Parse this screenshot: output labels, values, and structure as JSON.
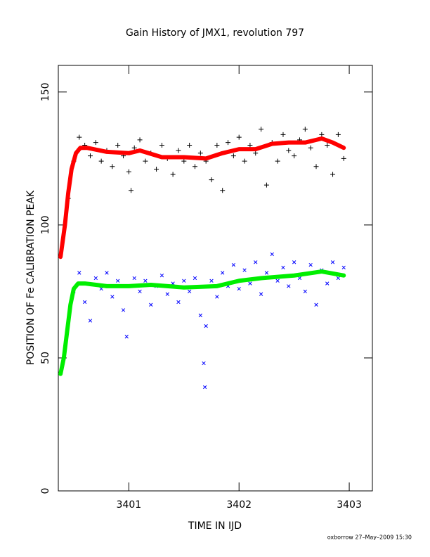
{
  "chart_data": {
    "type": "scatter",
    "title": "Gain History of JMX1, revolution 797",
    "xlabel": "TIME IN IJD",
    "ylabel": "POSITION OF Fe CALIBRATION PEAK",
    "footer": "oxborrow 27–May–2009 15:30",
    "xlim": [
      3400.36,
      3403.21
    ],
    "ylim": [
      0,
      160
    ],
    "xticks": [
      3401,
      3402,
      3403
    ],
    "yticks": [
      0,
      50,
      100,
      150
    ],
    "series": [
      {
        "color": "#000000",
        "marker": "plus",
        "x": [
          3400.45,
          3400.5,
          3400.55,
          3400.6,
          3400.65,
          3400.7,
          3400.75,
          3400.8,
          3400.85,
          3400.9,
          3400.95,
          3401.0,
          3401.02,
          3401.05,
          3401.1,
          3401.15,
          3401.2,
          3401.25,
          3401.3,
          3401.35,
          3401.4,
          3401.45,
          3401.5,
          3401.55,
          3401.6,
          3401.65,
          3401.7,
          3401.75,
          3401.8,
          3401.85,
          3401.9,
          3401.95,
          3402.0,
          3402.05,
          3402.1,
          3402.15,
          3402.2,
          3402.25,
          3402.3,
          3402.35,
          3402.4,
          3402.45,
          3402.5,
          3402.55,
          3402.6,
          3402.65,
          3402.7,
          3402.75,
          3402.8,
          3402.85,
          3402.9,
          3402.95
        ],
        "values": [
          110,
          124,
          133,
          130,
          126,
          131,
          124,
          128,
          122,
          130,
          126,
          120,
          113,
          129,
          132,
          124,
          127,
          121,
          130,
          125,
          119,
          128,
          124,
          130,
          122,
          127,
          124,
          117,
          130,
          113,
          131,
          126,
          133,
          124,
          130,
          127,
          136,
          115,
          131,
          124,
          134,
          128,
          126,
          132,
          136,
          129,
          122,
          134,
          130,
          119,
          134,
          125
        ]
      },
      {
        "color": "#ff0000",
        "marker": "line",
        "x": [
          3400.38,
          3400.42,
          3400.45,
          3400.48,
          3400.52,
          3400.56,
          3400.62,
          3400.8,
          3401.0,
          3401.1,
          3401.3,
          3401.5,
          3401.7,
          3401.85,
          3402.0,
          3402.15,
          3402.3,
          3402.45,
          3402.6,
          3402.75,
          3402.85,
          3402.95
        ],
        "values": [
          88,
          100,
          112,
          121,
          127,
          129,
          129,
          127.5,
          127,
          128,
          125.5,
          125.5,
          125,
          127,
          128.5,
          128.5,
          130.5,
          131,
          131,
          132.5,
          131,
          129
        ]
      },
      {
        "color": "#0000ff",
        "marker": "cross",
        "x": [
          3400.5,
          3400.55,
          3400.6,
          3400.65,
          3400.7,
          3400.75,
          3400.8,
          3400.85,
          3400.9,
          3400.95,
          3400.98,
          3401.05,
          3401.1,
          3401.15,
          3401.2,
          3401.25,
          3401.3,
          3401.35,
          3401.4,
          3401.45,
          3401.5,
          3401.55,
          3401.6,
          3401.65,
          3401.68,
          3401.69,
          3401.7,
          3401.75,
          3401.8,
          3401.85,
          3401.9,
          3401.95,
          3402.0,
          3402.05,
          3402.1,
          3402.15,
          3402.2,
          3402.25,
          3402.3,
          3402.35,
          3402.4,
          3402.45,
          3402.5,
          3402.55,
          3402.6,
          3402.65,
          3402.7,
          3402.75,
          3402.8,
          3402.85,
          3402.9,
          3402.95
        ],
        "values": [
          75,
          82,
          71,
          64,
          80,
          76,
          82,
          73,
          79,
          68,
          58,
          80,
          75,
          79,
          70,
          77,
          81,
          74,
          78,
          71,
          79,
          75,
          80,
          66,
          48,
          39,
          62,
          79,
          73,
          82,
          77,
          85,
          76,
          83,
          78,
          86,
          74,
          82,
          89,
          79,
          84,
          77,
          86,
          80,
          75,
          85,
          70,
          83,
          78,
          86,
          80,
          84
        ]
      },
      {
        "color": "#00ee00",
        "marker": "line",
        "x": [
          3400.38,
          3400.41,
          3400.44,
          3400.47,
          3400.5,
          3400.54,
          3400.6,
          3400.8,
          3401.0,
          3401.2,
          3401.5,
          3401.8,
          3402.0,
          3402.2,
          3402.5,
          3402.75,
          3402.95
        ],
        "values": [
          44,
          50,
          60,
          70,
          76,
          78,
          78,
          77,
          77,
          77.5,
          76.5,
          77,
          79,
          80,
          81,
          82.5,
          81
        ]
      }
    ]
  }
}
